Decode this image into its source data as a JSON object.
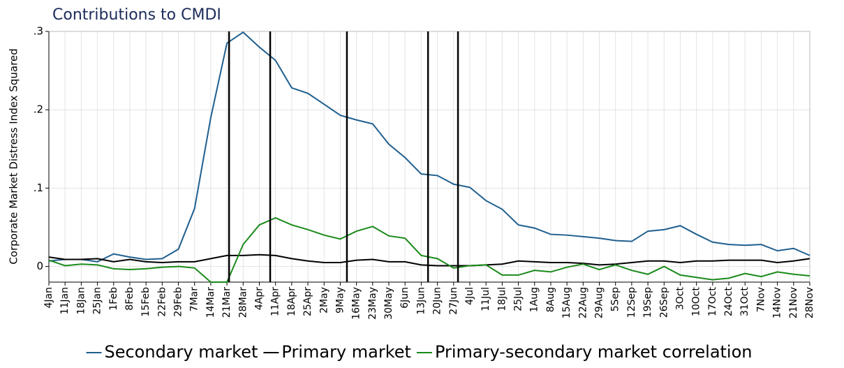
{
  "chart_data": {
    "type": "line",
    "title": "Contributions to CMDI",
    "y_label": "Corporate Market Distress Index Squared",
    "categories": [
      "4Jan",
      "11Jan",
      "18Jan",
      "25Jan",
      "1Feb",
      "8Feb",
      "15Feb",
      "22Feb",
      "29Feb",
      "7Mar",
      "14Mar",
      "21Mar",
      "28Mar",
      "4Apr",
      "11Apr",
      "18Apr",
      "25Apr",
      "2May",
      "9May",
      "16May",
      "23May",
      "30May",
      "6Jun",
      "13Jun",
      "20Jun",
      "27Jun",
      "4Jul",
      "11Jul",
      "18Jul",
      "25Jul",
      "1Aug",
      "8Aug",
      "15Aug",
      "22Aug",
      "29Aug",
      "5Sep",
      "12Sep",
      "19Sep",
      "26Sep",
      "3Oct",
      "10Oct",
      "17Oct",
      "24Oct",
      "31Oct",
      "7Nov",
      "14Nov",
      "21Nov",
      "28Nov"
    ],
    "series": [
      {
        "name": "Secondary market",
        "color": "#1f5f8f",
        "values": [
          0.007,
          0.009,
          0.009,
          0.006,
          0.016,
          0.012,
          0.009,
          0.01,
          0.022,
          0.074,
          0.19,
          0.285,
          0.299,
          0.28,
          0.263,
          0.228,
          0.221,
          0.207,
          0.193,
          0.187,
          0.182,
          0.156,
          0.139,
          0.118,
          0.116,
          0.105,
          0.101,
          0.084,
          0.073,
          0.053,
          0.049,
          0.041,
          0.04,
          0.038,
          0.036,
          0.033,
          0.032,
          0.045,
          0.047,
          0.052,
          0.041,
          0.031,
          0.028,
          0.027,
          0.028,
          0.02,
          0.023,
          0.014
        ]
      },
      {
        "name": "Primary market",
        "color": "#000000",
        "values": [
          0.012,
          0.009,
          0.009,
          0.01,
          0.006,
          0.009,
          0.006,
          0.005,
          0.006,
          0.006,
          0.01,
          0.014,
          0.014,
          0.015,
          0.014,
          0.01,
          0.007,
          0.005,
          0.005,
          0.008,
          0.009,
          0.006,
          0.006,
          0.002,
          0.001,
          0.001,
          0.001,
          0.002,
          0.003,
          0.007,
          0.006,
          0.005,
          0.005,
          0.004,
          0.002,
          0.003,
          0.005,
          0.007,
          0.007,
          0.005,
          0.007,
          0.007,
          0.008,
          0.008,
          0.008,
          0.005,
          0.007,
          0.01
        ]
      },
      {
        "name": "Primary-secondary market correlation",
        "color": "#1a8a1a",
        "values": [
          0.008,
          0.001,
          0.003,
          0.002,
          -0.003,
          -0.004,
          -0.003,
          -0.001,
          0,
          -0.002,
          -0.02,
          -0.02,
          0.028,
          0.053,
          0.062,
          0.053,
          0.047,
          0.04,
          0.035,
          0.045,
          0.051,
          0.039,
          0.036,
          0.014,
          0.01,
          -0.002,
          0.001,
          0.002,
          -0.011,
          -0.011,
          -0.005,
          -0.007,
          -0.001,
          0.003,
          -0.004,
          0.002,
          -0.005,
          -0.01,
          0,
          -0.011,
          -0.014,
          -0.017,
          -0.015,
          -0.009,
          -0.013,
          -0.007,
          -0.01,
          -0.012
        ]
      }
    ],
    "ylim": [
      -0.02,
      0.3
    ],
    "yticks": [
      0,
      {
        "value": 0.1,
        "label": ".1"
      },
      {
        "value": 0.2,
        "label": ".2"
      },
      {
        "value": 0.3,
        "label": ".3"
      }
    ],
    "vlines": [
      11.13,
      13.67,
      18.41,
      23.42,
      25.27
    ],
    "grid": true,
    "legend": "bottom"
  }
}
